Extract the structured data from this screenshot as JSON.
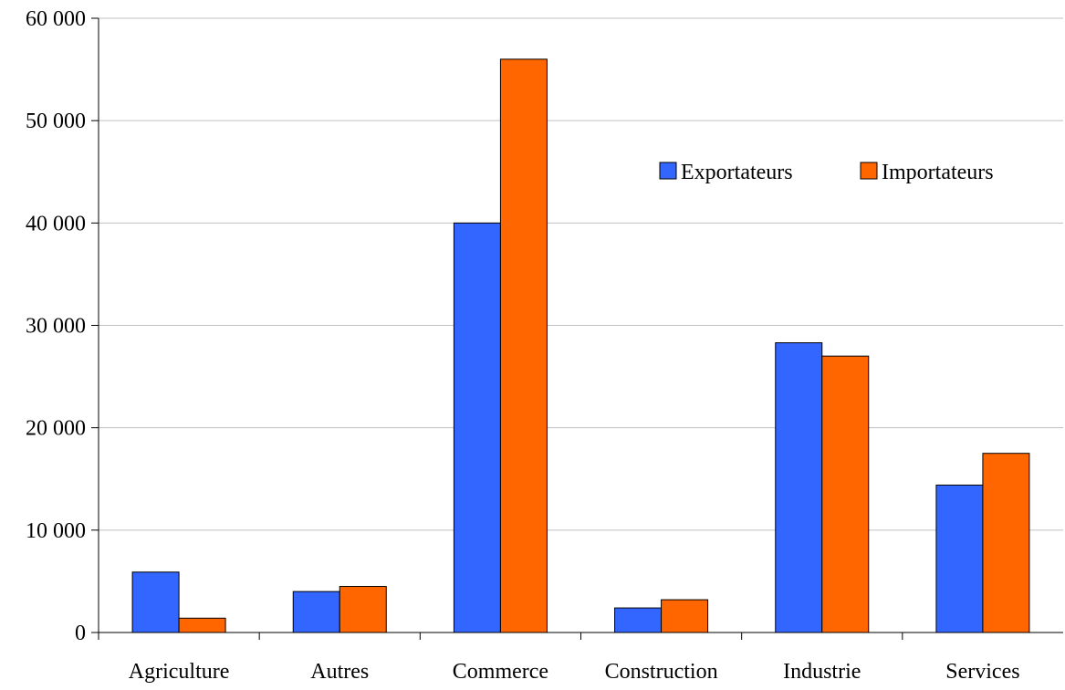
{
  "chart_data": {
    "type": "bar",
    "title": "",
    "xlabel": "",
    "ylabel": "",
    "categories": [
      "Agriculture",
      "Autres",
      "Commerce",
      "Construction",
      "Industrie",
      "Services"
    ],
    "series": [
      {
        "name": "Exportateurs",
        "color": "#3366ff",
        "values": [
          5900,
          4000,
          40000,
          2400,
          28300,
          14400
        ]
      },
      {
        "name": "Importateurs",
        "color": "#ff6600",
        "values": [
          1400,
          4500,
          56000,
          3200,
          27000,
          17500
        ]
      }
    ],
    "ylim": [
      0,
      60000
    ],
    "yticks": [
      0,
      10000,
      20000,
      30000,
      40000,
      50000,
      60000
    ],
    "ytick_labels": [
      "0",
      "10 000",
      "20 000",
      "30 000",
      "40 000",
      "50 000",
      "60 000"
    ],
    "grid": true,
    "legend_position": "top-right"
  }
}
